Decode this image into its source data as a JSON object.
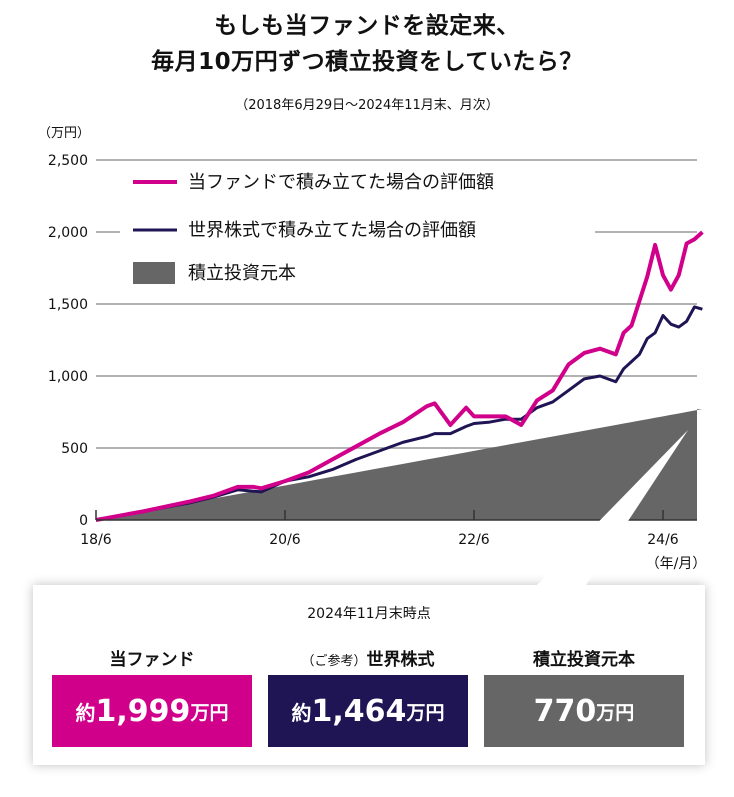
{
  "title_line1": "もしも当ファンドを設定来、",
  "title_line2": "毎月10万円ずつ積立投資をしていたら？",
  "subtitle": "（2018年6月29日〜2024年11月末、月次）",
  "y_unit": "（万円）",
  "x_unit": "（年/月）",
  "chart_data": {
    "type": "line",
    "xlabel": "（年/月）",
    "ylabel": "（万円）",
    "ylim": [
      0,
      2500
    ],
    "yticks": [
      "0",
      "500",
      "1,000",
      "1,500",
      "2,000",
      "2,500"
    ],
    "ytick_values": [
      0,
      500,
      1000,
      1500,
      2000,
      2500
    ],
    "xticks": [
      "18/6",
      "20/6",
      "22/6",
      "24/6"
    ],
    "xtick_months": [
      0,
      24,
      48,
      72
    ],
    "x_months_since_2018_6": [
      0,
      3,
      6,
      9,
      12,
      15,
      18,
      20,
      21,
      24,
      27,
      30,
      33,
      36,
      39,
      42,
      43,
      45,
      47,
      48,
      50,
      52,
      54,
      56,
      58,
      60,
      62,
      64,
      66,
      67,
      68,
      69,
      70,
      71,
      72,
      73,
      74,
      75,
      76,
      77
    ],
    "grid": true,
    "legend": "top-left",
    "series": [
      {
        "name": "当ファンドで積み立てた場合の評価額",
        "type": "line",
        "color": "#d1008a",
        "values": [
          0,
          30,
          60,
          95,
          130,
          170,
          230,
          230,
          220,
          270,
          330,
          420,
          510,
          600,
          680,
          790,
          810,
          660,
          780,
          720,
          720,
          720,
          660,
          830,
          900,
          1080,
          1160,
          1190,
          1150,
          1300,
          1350,
          1520,
          1690,
          1910,
          1700,
          1600,
          1700,
          1920,
          1950,
          1999
        ]
      },
      {
        "name": "世界株式で積み立てた場合の評価額",
        "type": "line",
        "color": "#1f1554",
        "values": [
          0,
          30,
          60,
          90,
          120,
          160,
          210,
          200,
          195,
          270,
          300,
          350,
          420,
          480,
          540,
          580,
          600,
          600,
          650,
          670,
          680,
          700,
          700,
          780,
          820,
          900,
          980,
          1000,
          960,
          1050,
          1100,
          1150,
          1260,
          1300,
          1420,
          1360,
          1340,
          1380,
          1480,
          1464
        ]
      },
      {
        "name": "積立投資元本",
        "type": "area",
        "color": "#666666",
        "values": [
          0,
          30,
          60,
          90,
          120,
          150,
          180,
          200,
          210,
          240,
          270,
          300,
          330,
          360,
          390,
          420,
          430,
          450,
          470,
          480,
          500,
          520,
          540,
          560,
          580,
          600,
          620,
          640,
          660,
          670,
          680,
          690,
          700,
          710,
          720,
          730,
          740,
          750,
          760,
          770
        ]
      }
    ]
  },
  "callout": {
    "date": "2024年11月末時点",
    "items": [
      {
        "label": "当ファンド",
        "label_prefix": "",
        "prefix": "約",
        "value": "1,999",
        "suffix": "万円",
        "color": "#d1008a"
      },
      {
        "label": "世界株式",
        "label_prefix": "（ご参考）",
        "prefix": "約",
        "value": "1,464",
        "suffix": "万円",
        "color": "#1f1554"
      },
      {
        "label": "積立投資元本",
        "label_prefix": "",
        "prefix": "",
        "value": "770",
        "suffix": "万円",
        "color": "#666666"
      }
    ]
  }
}
